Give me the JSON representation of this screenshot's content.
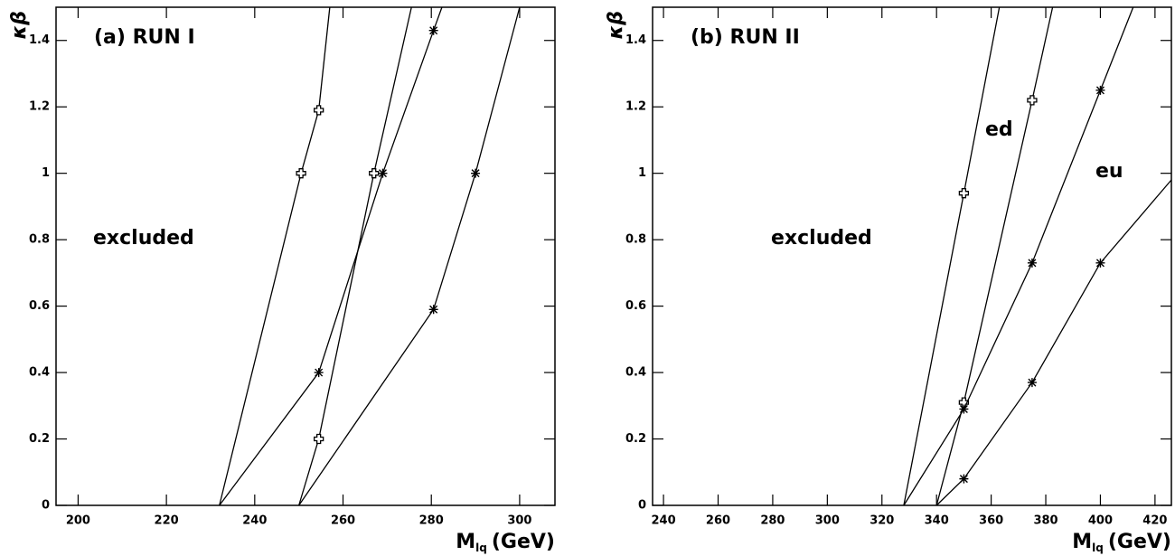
{
  "chart_data": [
    {
      "type": "line",
      "title": "(a) RUN I",
      "annotations": [
        "excluded"
      ],
      "xlabel": "M",
      "xlabel_sub": "lq",
      "xlabel_unit": "(GeV)",
      "ylabel": "κβ",
      "xlim": [
        195,
        308
      ],
      "xticks": [
        200,
        220,
        240,
        260,
        280,
        300
      ],
      "ylim": [
        0,
        1.5
      ],
      "yticks": [
        0,
        0.2,
        0.4,
        0.6,
        0.8,
        1,
        1.2,
        1.4
      ],
      "series": [
        {
          "marker": "plus",
          "color": "#000000",
          "x": [
            232,
            250.5,
            254.5,
            257
          ],
          "values": [
            0,
            1,
            1.19,
            1.5
          ]
        },
        {
          "marker": "plus",
          "color": "#000000",
          "x": [
            250,
            254.5,
            267,
            275.5
          ],
          "values": [
            0,
            0.2,
            1,
            1.5
          ]
        },
        {
          "marker": "star",
          "color": "#000000",
          "x": [
            232,
            254.5,
            269,
            280.5,
            282.4
          ],
          "values": [
            0,
            0.4,
            1,
            1.43,
            1.5
          ]
        },
        {
          "marker": "star",
          "color": "#000000",
          "x": [
            250,
            280.5,
            290,
            300
          ],
          "values": [
            0,
            0.59,
            1,
            1.5
          ]
        }
      ]
    },
    {
      "type": "line",
      "title": "(b) RUN II",
      "annotations": [
        "excluded",
        "ed",
        "eu"
      ],
      "xlabel": "M",
      "xlabel_sub": "lq",
      "xlabel_unit": "(GeV)",
      "ylabel": "κβ",
      "xlim": [
        236,
        426
      ],
      "xticks": [
        240,
        260,
        280,
        300,
        320,
        340,
        360,
        380,
        400,
        420
      ],
      "ylim": [
        0,
        1.5
      ],
      "yticks": [
        0,
        0.2,
        0.4,
        0.6,
        0.8,
        1,
        1.2,
        1.4
      ],
      "series": [
        {
          "marker": "plus",
          "color": "#000000",
          "x": [
            328,
            350,
            363
          ],
          "values": [
            0,
            0.94,
            1.5
          ]
        },
        {
          "marker": "plus",
          "color": "#000000",
          "x": [
            340,
            350,
            375,
            382.5
          ],
          "values": [
            0,
            0.31,
            1.22,
            1.5
          ]
        },
        {
          "marker": "star",
          "color": "#000000",
          "x": [
            328,
            350,
            375,
            400,
            412
          ],
          "values": [
            0,
            0.29,
            0.73,
            1.25,
            1.5
          ]
        },
        {
          "marker": "star",
          "color": "#000000",
          "x": [
            340,
            350,
            375,
            400,
            426
          ],
          "values": [
            0,
            0.08,
            0.37,
            0.73,
            0.98
          ]
        }
      ]
    }
  ]
}
